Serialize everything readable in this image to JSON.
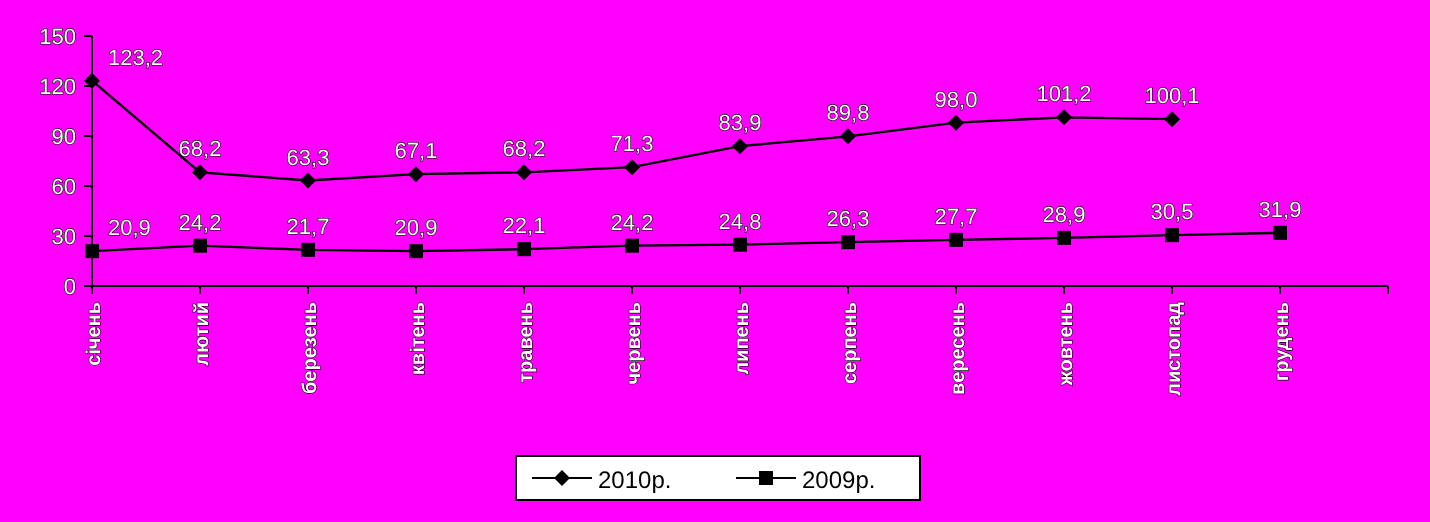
{
  "chart_data": {
    "type": "line",
    "categories": [
      "січень",
      "лютий",
      "березень",
      "квітень",
      "травень",
      "червень",
      "липень",
      "серпень",
      "вересень",
      "жовтень",
      "листопад",
      "грудень"
    ],
    "series": [
      {
        "name": "2010р.",
        "color": "#000000",
        "marker": "diamond",
        "values": [
          123.2,
          68.2,
          63.3,
          67.1,
          68.2,
          71.3,
          83.9,
          89.8,
          98.0,
          101.2,
          100.1,
          null
        ],
        "value_labels": [
          "123,2",
          "68,2",
          "63,3",
          "67,1",
          "68,2",
          "71,3",
          "83,9",
          "89,8",
          "98,0",
          "101,2",
          "100,1",
          null
        ]
      },
      {
        "name": "2009р.",
        "color": "#000000",
        "marker": "square",
        "values": [
          20.9,
          24.2,
          21.7,
          20.9,
          22.1,
          24.2,
          24.8,
          26.3,
          27.7,
          28.9,
          30.5,
          31.9
        ],
        "value_labels": [
          "20,9",
          "24,2",
          "21,7",
          "20,9",
          "22,1",
          "24,2",
          "24,8",
          "26,3",
          "27,7",
          "28,9",
          "30,5",
          "31,9"
        ]
      }
    ],
    "ylim": [
      0,
      150
    ],
    "yticks": [
      0,
      30,
      60,
      90,
      120,
      150
    ],
    "grid": false,
    "legend": "bottom",
    "line_style": "solid"
  }
}
